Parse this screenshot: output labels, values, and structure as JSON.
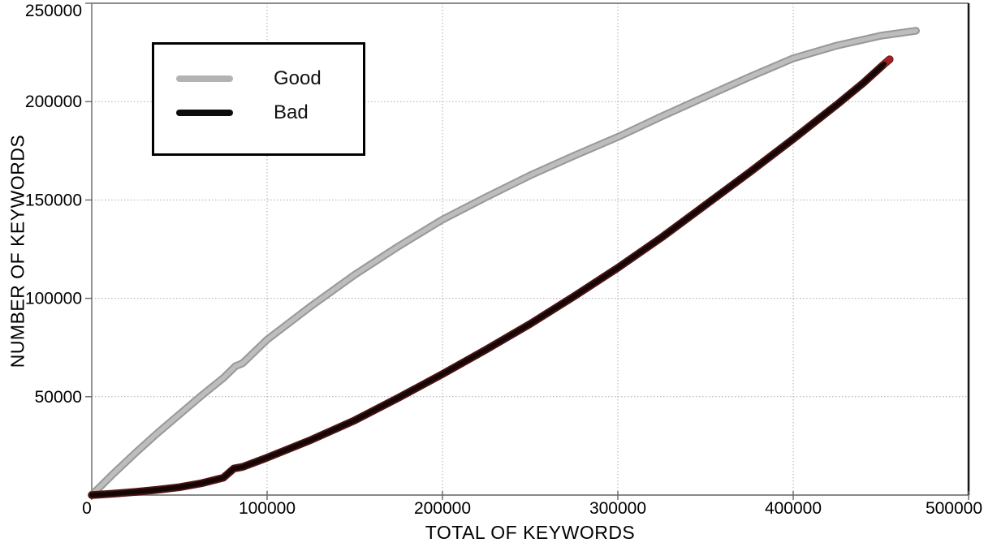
{
  "chart_data": {
    "type": "line",
    "title": "",
    "xlabel": "TOTAL OF KEYWORDS",
    "ylabel": "NUMBER OF KEYWORDS",
    "xlim": [
      0,
      500000
    ],
    "ylim": [
      0,
      250000
    ],
    "x_ticks": [
      0,
      100000,
      200000,
      300000,
      400000,
      500000
    ],
    "y_ticks": [
      50000,
      100000,
      150000,
      200000,
      250000
    ],
    "grid": {
      "visible": true,
      "style": "dotted",
      "color": "#ababab"
    },
    "frame": {
      "left_bottom_color": "#787878",
      "top_color": "#8c8c8c",
      "right_color": "#151515"
    },
    "legend": {
      "position": "top-left",
      "entries": [
        {
          "label": "Good",
          "color": "#b3b3b3"
        },
        {
          "label": "Bad",
          "color": "#0d0d0d"
        }
      ]
    },
    "series": [
      {
        "name": "Good",
        "edge_color": "#989898",
        "core_color": "#bdbdbd",
        "x": [
          0,
          12500,
          25000,
          37500,
          50000,
          62500,
          75000,
          82000,
          86000,
          100000,
          125000,
          150000,
          175000,
          200000,
          225000,
          250000,
          275000,
          300000,
          325000,
          350000,
          375000,
          400000,
          425000,
          450000,
          470000
        ],
        "y": [
          0,
          11000,
          21500,
          31500,
          41000,
          50500,
          59500,
          65500,
          67000,
          79000,
          96000,
          112000,
          126500,
          140000,
          151500,
          162500,
          172500,
          182000,
          192500,
          202500,
          212500,
          222000,
          228500,
          233500,
          236000
        ]
      },
      {
        "name": "Bad",
        "edge_color": "#4a1414",
        "core_color": "#150505",
        "tip_color": "#a12020",
        "x": [
          0,
          12500,
          25000,
          37500,
          50000,
          62500,
          75000,
          81000,
          86000,
          100000,
          125000,
          150000,
          175000,
          200000,
          225000,
          250000,
          275000,
          300000,
          325000,
          350000,
          375000,
          400000,
          425000,
          440000,
          452000,
          455000
        ],
        "y": [
          0,
          700,
          1600,
          2700,
          4000,
          6000,
          8800,
          13500,
          14300,
          19000,
          28000,
          38000,
          49500,
          61500,
          74000,
          87000,
          101000,
          115500,
          131000,
          147500,
          164000,
          181000,
          198500,
          209500,
          219200,
          221500
        ]
      }
    ]
  }
}
